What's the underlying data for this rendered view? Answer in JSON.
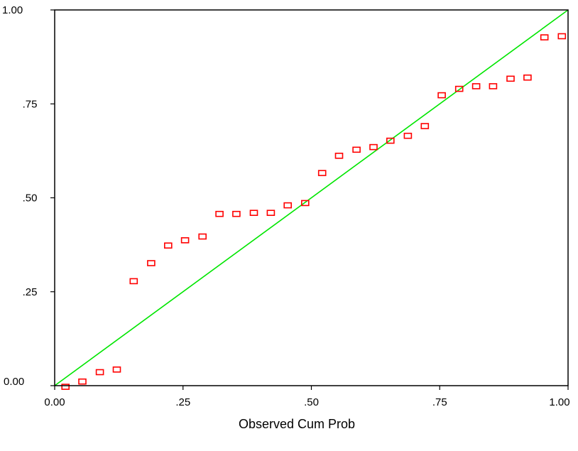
{
  "chart_data": {
    "type": "scatter",
    "title": "",
    "xlabel": "Observed Cum Prob",
    "ylabel": "",
    "xlim": [
      0,
      1
    ],
    "ylim": [
      0,
      1
    ],
    "x_ticks": [
      0,
      0.25,
      0.5,
      0.75,
      1.0
    ],
    "x_tick_labels": [
      "0.00",
      ".25",
      ".50",
      ".75",
      "1.00"
    ],
    "y_ticks": [
      0,
      0.25,
      0.5,
      0.75,
      1.0
    ],
    "y_tick_labels": [
      "0.00",
      ".25",
      ".50",
      ".75",
      "1.00"
    ],
    "grid": false,
    "legend": "none",
    "reference_line": {
      "from": [
        0,
        0
      ],
      "to": [
        1,
        1
      ],
      "color": "#00e600"
    },
    "marker": {
      "shape": "square",
      "color": "#ff0000",
      "fill": "none"
    },
    "points": [
      [
        0.021,
        -0.003
      ],
      [
        0.054,
        0.011
      ],
      [
        0.088,
        0.036
      ],
      [
        0.121,
        0.043
      ],
      [
        0.154,
        0.278
      ],
      [
        0.188,
        0.326
      ],
      [
        0.221,
        0.373
      ],
      [
        0.254,
        0.387
      ],
      [
        0.288,
        0.397
      ],
      [
        0.321,
        0.457
      ],
      [
        0.354,
        0.457
      ],
      [
        0.388,
        0.46
      ],
      [
        0.421,
        0.46
      ],
      [
        0.454,
        0.48
      ],
      [
        0.488,
        0.486
      ],
      [
        0.521,
        0.566
      ],
      [
        0.554,
        0.612
      ],
      [
        0.588,
        0.628
      ],
      [
        0.621,
        0.635
      ],
      [
        0.654,
        0.652
      ],
      [
        0.688,
        0.665
      ],
      [
        0.721,
        0.691
      ],
      [
        0.754,
        0.773
      ],
      [
        0.788,
        0.79
      ],
      [
        0.821,
        0.797
      ],
      [
        0.854,
        0.797
      ],
      [
        0.888,
        0.817
      ],
      [
        0.921,
        0.82
      ],
      [
        0.954,
        0.927
      ],
      [
        0.988,
        0.93
      ]
    ]
  }
}
